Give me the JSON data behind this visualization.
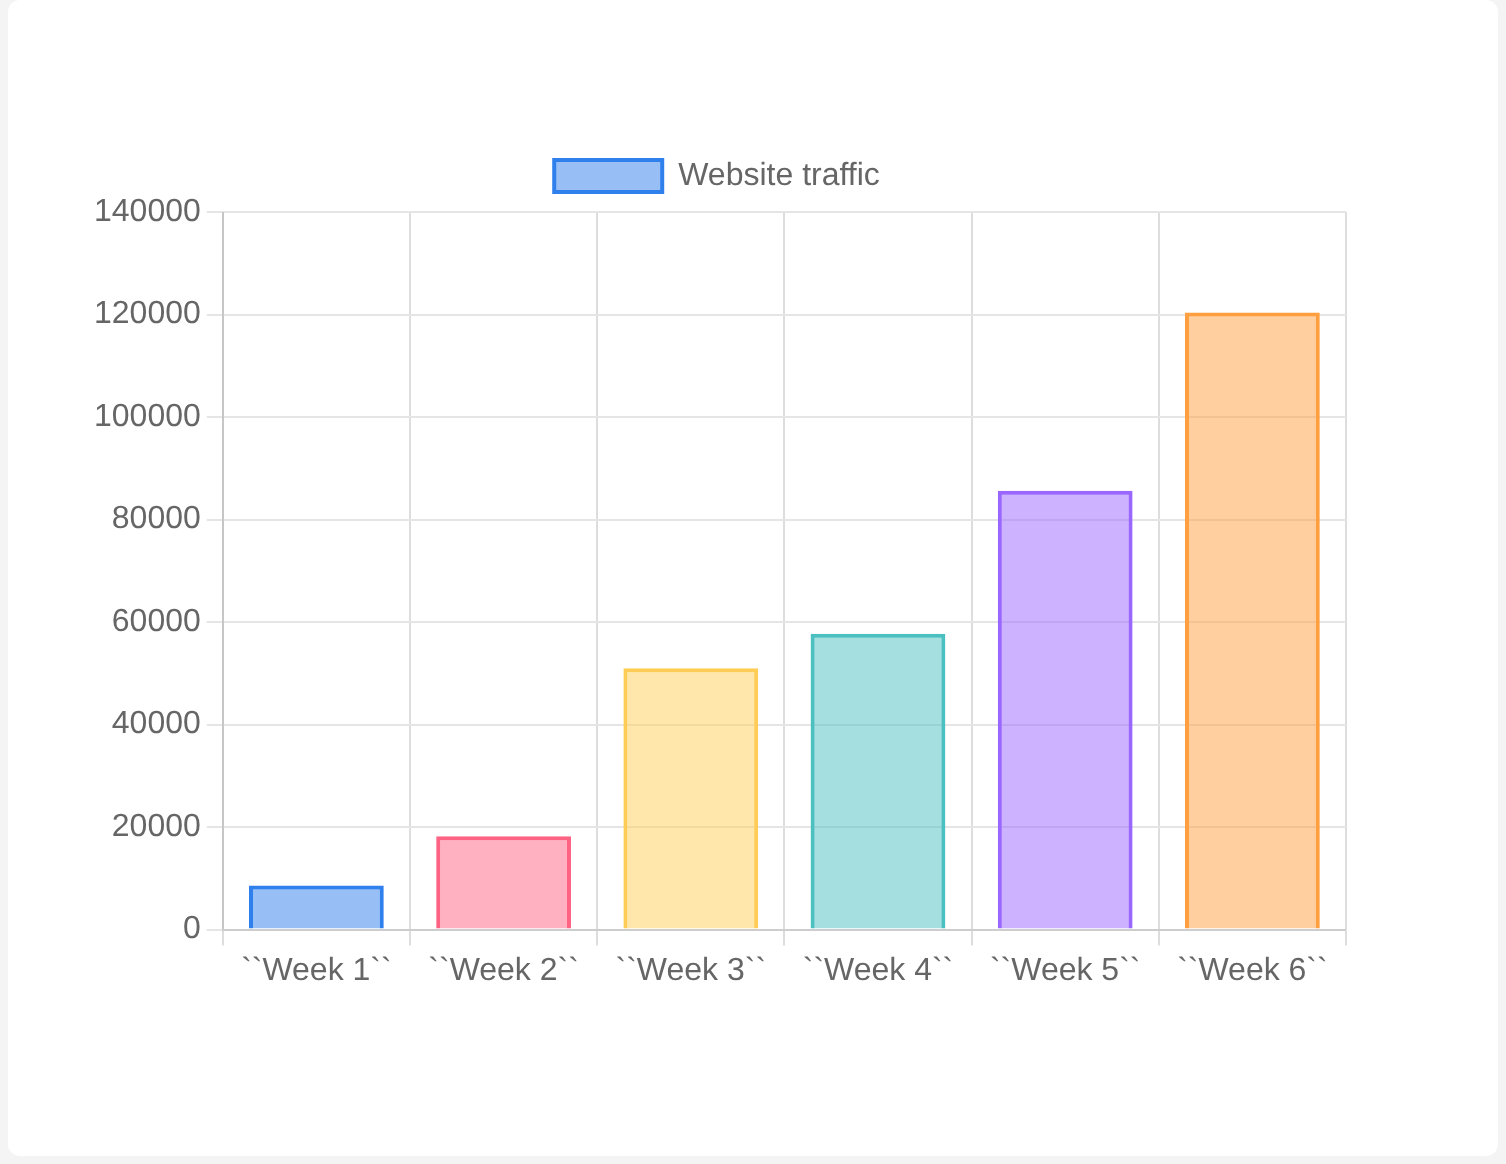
{
  "chart_data": {
    "type": "bar",
    "categories": [
      "``Week 1``",
      "``Week 2``",
      "``Week 3``",
      "``Week 4``",
      "``Week 5``",
      "``Week 6``"
    ],
    "series": [
      {
        "name": "Website traffic",
        "values": [
          8600,
          18200,
          51000,
          57700,
          85600,
          120400
        ],
        "colors": [
          "#2f80ed",
          "#ff6384",
          "#ffcd56",
          "#4bc0c0",
          "#9966ff",
          "#ff9f40"
        ]
      }
    ],
    "ylim": [
      0,
      140000
    ],
    "yticks": [
      0,
      20000,
      40000,
      60000,
      80000,
      100000,
      120000,
      140000
    ],
    "grid": true,
    "legend": "top"
  }
}
